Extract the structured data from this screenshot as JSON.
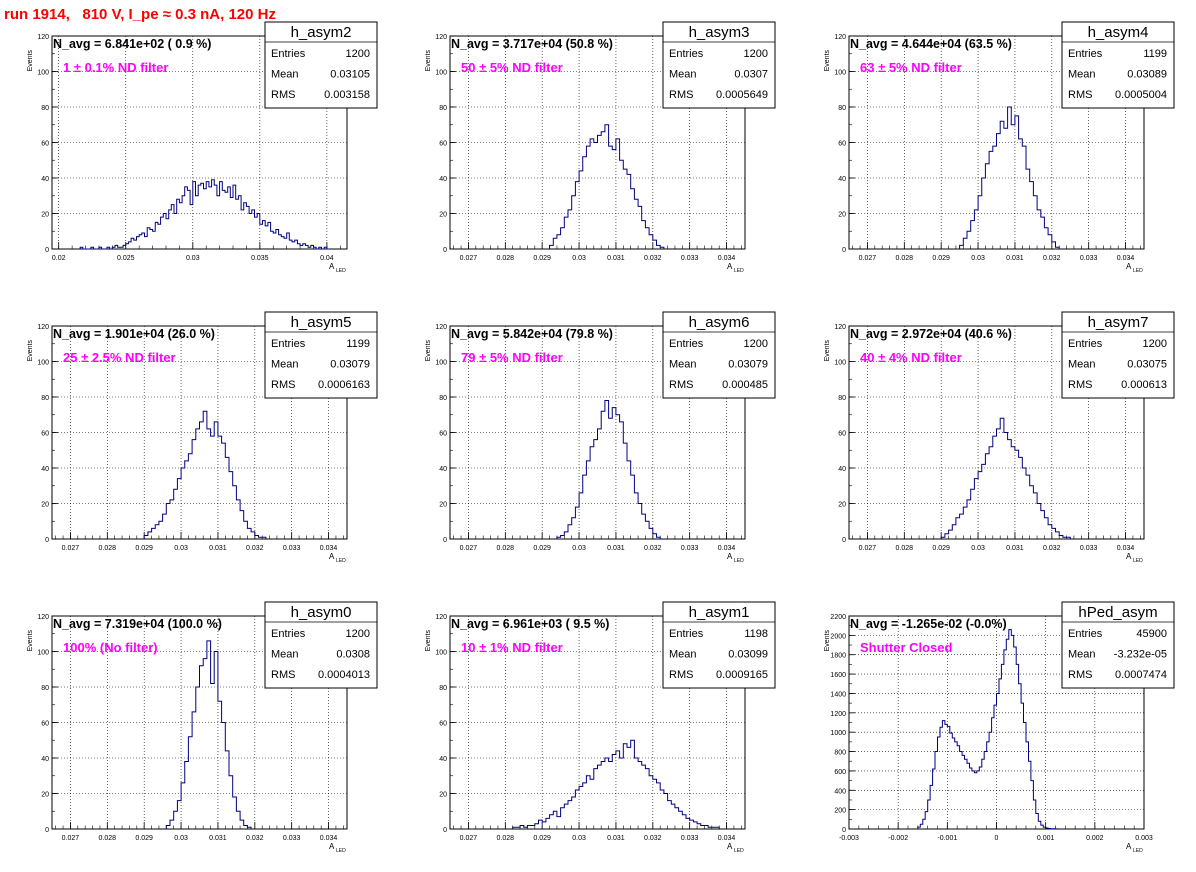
{
  "page": {
    "title": "run 1914,   810 V, I_pe ≈ 0.3 nA, 120 Hz",
    "title_color": "#ff0000",
    "line_color": "#000080",
    "annotation_color": "#ff00ff",
    "y_axis_label": "Events",
    "x_axis_label_main": "A",
    "x_axis_label_sub": "LED"
  },
  "chart_data": [
    {
      "type": "histogram",
      "name": "h_asym2",
      "stats": [
        [
          "Entries",
          "1200"
        ],
        [
          "Mean",
          "0.03105"
        ],
        [
          "RMS",
          "0.003158"
        ]
      ],
      "navg": "N_avg = 6.841e+02 ( 0.9 %)",
      "annotation": "1 ± 0.1% ND filter",
      "xlim": [
        0.0195,
        0.0415
      ],
      "ylim": [
        0,
        120
      ],
      "xticks": [
        0.02,
        0.025,
        0.03,
        0.035,
        0.04
      ],
      "xtick_labels": [
        "0.02",
        "0.025",
        "0.03",
        "0.035",
        "0.04"
      ],
      "yticks": [
        0,
        20,
        40,
        60,
        80,
        100,
        120
      ],
      "bin_width": 0.0002,
      "x": [
        0.0217,
        0.0219,
        0.0221,
        0.0223,
        0.0225,
        0.0227,
        0.0229,
        0.0231,
        0.0233,
        0.0235,
        0.0237,
        0.0239,
        0.0241,
        0.0243,
        0.0245,
        0.0247,
        0.0249,
        0.0251,
        0.0253,
        0.0255,
        0.0257,
        0.0259,
        0.0261,
        0.0263,
        0.0265,
        0.0267,
        0.0269,
        0.0271,
        0.0273,
        0.0275,
        0.0277,
        0.0279,
        0.0281,
        0.0283,
        0.0285,
        0.0287,
        0.0289,
        0.0291,
        0.0293,
        0.0295,
        0.0297,
        0.0299,
        0.0301,
        0.0303,
        0.0305,
        0.0307,
        0.0309,
        0.0311,
        0.0313,
        0.0315,
        0.0317,
        0.0319,
        0.0321,
        0.0323,
        0.0325,
        0.0327,
        0.0329,
        0.0331,
        0.0333,
        0.0335,
        0.0337,
        0.0339,
        0.0341,
        0.0343,
        0.0345,
        0.0347,
        0.0349,
        0.0351,
        0.0353,
        0.0355,
        0.0357,
        0.0359,
        0.0361,
        0.0363,
        0.0365,
        0.0367,
        0.0369,
        0.0371,
        0.0373,
        0.0375,
        0.0377,
        0.0379,
        0.0381,
        0.0383,
        0.0385,
        0.0387,
        0.0389,
        0.0391,
        0.0393,
        0.0395,
        0.0397,
        0.0399,
        0.0401
      ],
      "y": [
        1,
        0,
        0,
        0,
        1,
        0,
        0,
        1,
        0,
        0,
        1,
        0,
        1,
        2,
        1,
        1,
        2,
        3,
        4,
        6,
        5,
        7,
        8,
        9,
        7,
        12,
        11,
        10,
        15,
        14,
        18,
        20,
        17,
        22,
        25,
        20,
        28,
        26,
        30,
        35,
        33,
        25,
        38,
        30,
        36,
        37,
        34,
        38,
        35,
        39,
        36,
        30,
        38,
        33,
        32,
        35,
        29,
        36,
        28,
        30,
        22,
        26,
        24,
        20,
        22,
        18,
        20,
        14,
        16,
        13,
        15,
        10,
        9,
        11,
        8,
        7,
        6,
        9,
        5,
        4,
        5,
        3,
        2,
        3,
        2,
        1,
        2,
        1,
        0,
        1,
        0,
        1,
        0
      ]
    },
    {
      "type": "histogram",
      "name": "h_asym3",
      "stats": [
        [
          "Entries",
          "1200"
        ],
        [
          "Mean",
          "0.0307"
        ],
        [
          "RMS",
          "0.0005649"
        ]
      ],
      "navg": "N_avg = 3.717e+04 (50.8 %)",
      "annotation": "50 ± 5% ND filter",
      "xlim": [
        0.0265,
        0.0345
      ],
      "ylim": [
        0,
        120
      ],
      "xticks": [
        0.027,
        0.028,
        0.029,
        0.03,
        0.031,
        0.032,
        0.033,
        0.034
      ],
      "xtick_labels": [
        "0.027",
        "0.028",
        "0.029",
        "0.03",
        "0.031",
        "0.032",
        "0.033",
        "0.034"
      ],
      "yticks": [
        0,
        20,
        40,
        60,
        80,
        100,
        120
      ],
      "bin_width": 0.0001,
      "x": [
        0.02925,
        0.02935,
        0.02945,
        0.02955,
        0.02965,
        0.02975,
        0.02985,
        0.02995,
        0.03005,
        0.03015,
        0.03025,
        0.03035,
        0.03045,
        0.03055,
        0.03065,
        0.03075,
        0.03085,
        0.03095,
        0.03105,
        0.03115,
        0.03125,
        0.03135,
        0.03145,
        0.03155,
        0.03165,
        0.03175,
        0.03185,
        0.03195,
        0.03205,
        0.03215,
        0.03225
      ],
      "y": [
        2,
        6,
        8,
        12,
        18,
        22,
        30,
        38,
        44,
        52,
        58,
        62,
        60,
        64,
        66,
        70,
        58,
        56,
        62,
        50,
        45,
        42,
        34,
        28,
        24,
        16,
        12,
        8,
        5,
        2,
        1
      ]
    },
    {
      "type": "histogram",
      "name": "h_asym4",
      "stats": [
        [
          "Entries",
          "1199"
        ],
        [
          "Mean",
          "0.03089"
        ],
        [
          "RMS",
          "0.0005004"
        ]
      ],
      "navg": "N_avg = 4.644e+04 (63.5 %)",
      "annotation": "63 ± 5% ND filter",
      "xlim": [
        0.0265,
        0.0345
      ],
      "ylim": [
        0,
        120
      ],
      "xticks": [
        0.027,
        0.028,
        0.029,
        0.03,
        0.031,
        0.032,
        0.033,
        0.034
      ],
      "xtick_labels": [
        "0.027",
        "0.028",
        "0.029",
        "0.03",
        "0.031",
        "0.032",
        "0.033",
        "0.034"
      ],
      "yticks": [
        0,
        20,
        40,
        60,
        80,
        100,
        120
      ],
      "bin_width": 0.0001,
      "x": [
        0.02955,
        0.02965,
        0.02975,
        0.02985,
        0.02995,
        0.03005,
        0.03015,
        0.03025,
        0.03035,
        0.03045,
        0.03055,
        0.03065,
        0.03075,
        0.03085,
        0.03095,
        0.03105,
        0.03115,
        0.03125,
        0.03135,
        0.03145,
        0.03155,
        0.03165,
        0.03175,
        0.03185,
        0.03195,
        0.03205,
        0.03215
      ],
      "y": [
        2,
        6,
        10,
        16,
        22,
        30,
        40,
        48,
        55,
        58,
        65,
        72,
        68,
        80,
        70,
        75,
        62,
        58,
        45,
        38,
        30,
        22,
        18,
        12,
        8,
        4,
        1
      ]
    },
    {
      "type": "histogram",
      "name": "h_asym5",
      "stats": [
        [
          "Entries",
          "1199"
        ],
        [
          "Mean",
          "0.03079"
        ],
        [
          "RMS",
          "0.0006163"
        ]
      ],
      "navg": "N_avg = 1.901e+04 (26.0 %)",
      "annotation": "25 ± 2.5% ND filter",
      "xlim": [
        0.0265,
        0.0345
      ],
      "ylim": [
        0,
        120
      ],
      "xticks": [
        0.027,
        0.028,
        0.029,
        0.03,
        0.031,
        0.032,
        0.033,
        0.034
      ],
      "xtick_labels": [
        "0.027",
        "0.028",
        "0.029",
        "0.03",
        "0.031",
        "0.032",
        "0.033",
        "0.034"
      ],
      "yticks": [
        0,
        20,
        40,
        60,
        80,
        100,
        120
      ],
      "bin_width": 0.0001,
      "x": [
        0.02905,
        0.02915,
        0.02925,
        0.02935,
        0.02945,
        0.02955,
        0.02965,
        0.02975,
        0.02985,
        0.02995,
        0.03005,
        0.03015,
        0.03025,
        0.03035,
        0.03045,
        0.03055,
        0.03065,
        0.03075,
        0.03085,
        0.03095,
        0.03105,
        0.03115,
        0.03125,
        0.03135,
        0.03145,
        0.03155,
        0.03165,
        0.03175,
        0.03185,
        0.03195,
        0.03205,
        0.03215,
        0.03225
      ],
      "y": [
        2,
        4,
        6,
        8,
        10,
        14,
        20,
        22,
        28,
        34,
        40,
        44,
        48,
        56,
        62,
        66,
        72,
        62,
        58,
        66,
        58,
        54,
        46,
        38,
        30,
        22,
        16,
        10,
        6,
        4,
        2,
        1,
        1
      ]
    },
    {
      "type": "histogram",
      "name": "h_asym6",
      "stats": [
        [
          "Entries",
          "1200"
        ],
        [
          "Mean",
          "0.03079"
        ],
        [
          "RMS",
          "0.000485"
        ]
      ],
      "navg": "N_avg = 5.842e+04 (79.8 %)",
      "annotation": "79 ± 5% ND filter",
      "xlim": [
        0.0265,
        0.0345
      ],
      "ylim": [
        0,
        120
      ],
      "xticks": [
        0.027,
        0.028,
        0.029,
        0.03,
        0.031,
        0.032,
        0.033,
        0.034
      ],
      "xtick_labels": [
        "0.027",
        "0.028",
        "0.029",
        "0.03",
        "0.031",
        "0.032",
        "0.033",
        "0.034"
      ],
      "yticks": [
        0,
        20,
        40,
        60,
        80,
        100,
        120
      ],
      "bin_width": 0.0001,
      "x": [
        0.02945,
        0.02955,
        0.02965,
        0.02975,
        0.02985,
        0.02995,
        0.03005,
        0.03015,
        0.03025,
        0.03035,
        0.03045,
        0.03055,
        0.03065,
        0.03075,
        0.03085,
        0.03095,
        0.03105,
        0.03115,
        0.03125,
        0.03135,
        0.03145,
        0.03155,
        0.03165,
        0.03175,
        0.03185,
        0.03195,
        0.03205,
        0.03215
      ],
      "y": [
        1,
        2,
        4,
        8,
        12,
        18,
        26,
        36,
        44,
        52,
        56,
        62,
        72,
        78,
        68,
        74,
        70,
        66,
        54,
        44,
        36,
        26,
        20,
        14,
        10,
        6,
        3,
        1
      ]
    },
    {
      "type": "histogram",
      "name": "h_asym7",
      "stats": [
        [
          "Entries",
          "1200"
        ],
        [
          "Mean",
          "0.03075"
        ],
        [
          "RMS",
          "0.000613"
        ]
      ],
      "navg": "N_avg = 2.972e+04 (40.6 %)",
      "annotation": "40 ± 4% ND filter",
      "xlim": [
        0.0265,
        0.0345
      ],
      "ylim": [
        0,
        120
      ],
      "xticks": [
        0.027,
        0.028,
        0.029,
        0.03,
        0.031,
        0.032,
        0.033,
        0.034
      ],
      "xtick_labels": [
        "0.027",
        "0.028",
        "0.029",
        "0.03",
        "0.031",
        "0.032",
        "0.033",
        "0.034"
      ],
      "yticks": [
        0,
        20,
        40,
        60,
        80,
        100,
        120
      ],
      "bin_width": 0.0001,
      "x": [
        0.02905,
        0.02915,
        0.02925,
        0.02935,
        0.02945,
        0.02955,
        0.02965,
        0.02975,
        0.02985,
        0.02995,
        0.03005,
        0.03015,
        0.03025,
        0.03035,
        0.03045,
        0.03055,
        0.03065,
        0.03075,
        0.03085,
        0.03095,
        0.03105,
        0.03115,
        0.03125,
        0.03135,
        0.03145,
        0.03155,
        0.03165,
        0.03175,
        0.03185,
        0.03195,
        0.03205,
        0.03215,
        0.03225,
        0.03235,
        0.03245
      ],
      "y": [
        1,
        3,
        5,
        8,
        12,
        14,
        18,
        22,
        28,
        34,
        38,
        42,
        48,
        52,
        58,
        62,
        68,
        60,
        56,
        52,
        50,
        46,
        40,
        36,
        30,
        26,
        20,
        16,
        12,
        8,
        6,
        4,
        2,
        1,
        1
      ]
    },
    {
      "type": "histogram",
      "name": "h_asym0",
      "stats": [
        [
          "Entries",
          "1200"
        ],
        [
          "Mean",
          "0.0308"
        ],
        [
          "RMS",
          "0.0004013"
        ]
      ],
      "navg": "N_avg = 7.319e+04 (100.0 %)",
      "annotation": "100% (No filter)",
      "xlim": [
        0.0265,
        0.0345
      ],
      "ylim": [
        0,
        120
      ],
      "xticks": [
        0.027,
        0.028,
        0.029,
        0.03,
        0.031,
        0.032,
        0.033,
        0.034
      ],
      "xtick_labels": [
        "0.027",
        "0.028",
        "0.029",
        "0.03",
        "0.031",
        "0.032",
        "0.033",
        "0.034"
      ],
      "yticks": [
        0,
        20,
        40,
        60,
        80,
        100,
        120
      ],
      "bin_width": 0.0001,
      "x": [
        0.02965,
        0.02975,
        0.02985,
        0.02995,
        0.03005,
        0.03015,
        0.03025,
        0.03035,
        0.03045,
        0.03055,
        0.03065,
        0.03075,
        0.03085,
        0.03095,
        0.03105,
        0.03115,
        0.03125,
        0.03135,
        0.03145,
        0.03155,
        0.03165,
        0.03175,
        0.03185
      ],
      "y": [
        2,
        5,
        10,
        16,
        26,
        38,
        52,
        66,
        80,
        92,
        96,
        106,
        82,
        100,
        72,
        60,
        44,
        30,
        18,
        10,
        5,
        2,
        1
      ]
    },
    {
      "type": "histogram",
      "name": "h_asym1",
      "stats": [
        [
          "Entries",
          "1198"
        ],
        [
          "Mean",
          "0.03099"
        ],
        [
          "RMS",
          "0.0009165"
        ]
      ],
      "navg": "N_avg = 6.961e+03 ( 9.5 %)",
      "annotation": "10 ± 1% ND filter",
      "xlim": [
        0.0265,
        0.0345
      ],
      "ylim": [
        0,
        120
      ],
      "xticks": [
        0.027,
        0.028,
        0.029,
        0.03,
        0.031,
        0.032,
        0.033,
        0.034
      ],
      "xtick_labels": [
        "0.027",
        "0.028",
        "0.029",
        "0.03",
        "0.031",
        "0.032",
        "0.033",
        "0.034"
      ],
      "yticks": [
        0,
        20,
        40,
        60,
        80,
        100,
        120
      ],
      "bin_width": 0.0001,
      "x": [
        0.02825,
        0.02835,
        0.02845,
        0.02855,
        0.02865,
        0.02875,
        0.02885,
        0.02895,
        0.02905,
        0.02915,
        0.02925,
        0.02935,
        0.02945,
        0.02955,
        0.02965,
        0.02975,
        0.02985,
        0.02995,
        0.03005,
        0.03015,
        0.03025,
        0.03035,
        0.03045,
        0.03055,
        0.03065,
        0.03075,
        0.03085,
        0.03095,
        0.03105,
        0.03115,
        0.03125,
        0.03135,
        0.03145,
        0.03155,
        0.03165,
        0.03175,
        0.03185,
        0.03195,
        0.03205,
        0.03215,
        0.03225,
        0.03235,
        0.03245,
        0.03255,
        0.03265,
        0.03275,
        0.03285,
        0.03295,
        0.03305,
        0.03315,
        0.03325,
        0.03335,
        0.03345,
        0.03355,
        0.03365,
        0.03375
      ],
      "y": [
        1,
        1,
        2,
        1,
        2,
        2,
        3,
        5,
        4,
        6,
        8,
        10,
        7,
        12,
        14,
        16,
        18,
        22,
        24,
        26,
        30,
        28,
        34,
        36,
        38,
        40,
        38,
        42,
        44,
        40,
        48,
        46,
        50,
        40,
        38,
        36,
        34,
        30,
        28,
        26,
        22,
        20,
        16,
        14,
        12,
        10,
        8,
        6,
        5,
        4,
        3,
        2,
        2,
        1,
        1,
        1
      ]
    },
    {
      "type": "histogram",
      "name": "hPed_asym",
      "stats": [
        [
          "Entries",
          "45900"
        ],
        [
          "Mean",
          "-3.232e-05"
        ],
        [
          "RMS",
          "0.0007474"
        ]
      ],
      "navg": "N_avg = -1.265e-02 (-0.0%)",
      "annotation": "Shutter Closed",
      "xlim": [
        -0.003,
        0.003
      ],
      "ylim": [
        0,
        2200
      ],
      "xticks": [
        -0.003,
        -0.002,
        -0.001,
        0,
        0.001,
        0.002,
        0.003
      ],
      "xtick_labels": [
        "-0.003",
        "-0.002",
        "-0.001",
        "0",
        "0.001",
        "0.002",
        "0.003"
      ],
      "yticks": [
        0,
        200,
        400,
        600,
        800,
        1000,
        1200,
        1400,
        1600,
        1800,
        2000,
        2200
      ],
      "bin_width": 5e-05,
      "x": [
        -0.001575,
        -0.001525,
        -0.001475,
        -0.001425,
        -0.001375,
        -0.001325,
        -0.001275,
        -0.001225,
        -0.001175,
        -0.001125,
        -0.001075,
        -0.001025,
        -0.000975,
        -0.000925,
        -0.000875,
        -0.000825,
        -0.000775,
        -0.000725,
        -0.000675,
        -0.000625,
        -0.000575,
        -0.000525,
        -0.000475,
        -0.000425,
        -0.000375,
        -0.000325,
        -0.000275,
        -0.000225,
        -0.000175,
        -0.000125,
        -7.5e-05,
        -2.5e-05,
        2.5e-05,
        7.5e-05,
        0.000125,
        0.000175,
        0.000225,
        0.000275,
        0.000325,
        0.000375,
        0.000425,
        0.000475,
        0.000525,
        0.000575,
        0.000625,
        0.000675,
        0.000725,
        0.000775,
        0.000825,
        0.000875,
        0.000925,
        0.000975,
        0.001025,
        0.001075,
        0.001125,
        0.001175,
        0.001225
      ],
      "y": [
        20,
        50,
        100,
        180,
        300,
        450,
        620,
        800,
        950,
        1050,
        1120,
        1080,
        1060,
        990,
        940,
        900,
        860,
        800,
        760,
        720,
        680,
        630,
        600,
        580,
        600,
        640,
        720,
        800,
        900,
        1000,
        1150,
        1280,
        1400,
        1550,
        1700,
        1850,
        1960,
        2060,
        2000,
        1880,
        1700,
        1500,
        1300,
        1100,
        900,
        700,
        500,
        300,
        160,
        80,
        40,
        20,
        10,
        5,
        3,
        2,
        1
      ]
    }
  ]
}
